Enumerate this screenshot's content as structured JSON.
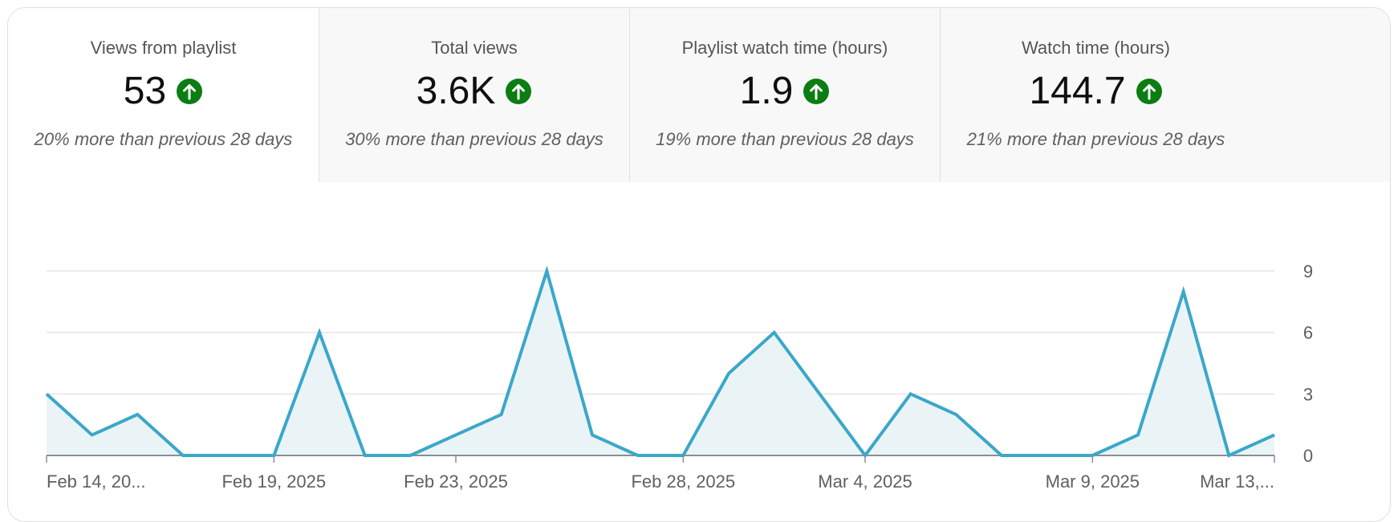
{
  "colors": {
    "accent": "#3ba7c9",
    "area_fill": "#eaf4f7",
    "up_badge": "#0b7d12",
    "grid": "#e5e5e5",
    "baseline": "#8a8f94"
  },
  "metrics": [
    {
      "title": "Views from playlist",
      "value": "53",
      "trend_icon": "arrow-up-icon",
      "comparison": "20% more than previous 28 days",
      "selected": true
    },
    {
      "title": "Total views",
      "value": "3.6K",
      "trend_icon": "arrow-up-icon",
      "comparison": "30% more than previous 28 days",
      "selected": false
    },
    {
      "title": "Playlist watch time (hours)",
      "value": "1.9",
      "trend_icon": "arrow-up-icon",
      "comparison": "19% more than previous 28 days",
      "selected": false
    },
    {
      "title": "Watch time (hours)",
      "value": "144.7",
      "trend_icon": "arrow-up-icon",
      "comparison": "21% more than previous 28 days",
      "selected": false
    }
  ],
  "chart_data": {
    "type": "area",
    "title": "",
    "xlabel": "",
    "ylabel": "",
    "y_axis_side": "right",
    "ylim": [
      0,
      9
    ],
    "y_ticks": [
      0,
      3,
      6,
      9
    ],
    "grid": true,
    "legend": "none",
    "x_tick_labels": [
      {
        "date": "2025-02-14",
        "label": "Feb 14, 20..."
      },
      {
        "date": "2025-02-19",
        "label": "Feb 19, 2025"
      },
      {
        "date": "2025-02-23",
        "label": "Feb 23, 2025"
      },
      {
        "date": "2025-02-28",
        "label": "Feb 28, 2025"
      },
      {
        "date": "2025-03-04",
        "label": "Mar 4, 2025"
      },
      {
        "date": "2025-03-09",
        "label": "Mar 9, 2025"
      },
      {
        "date": "2025-03-13",
        "label": "Mar 13,..."
      }
    ],
    "x": [
      "2025-02-14",
      "2025-02-15",
      "2025-02-16",
      "2025-02-17",
      "2025-02-18",
      "2025-02-19",
      "2025-02-20",
      "2025-02-21",
      "2025-02-22",
      "2025-02-23",
      "2025-02-24",
      "2025-02-25",
      "2025-02-26",
      "2025-02-27",
      "2025-02-28",
      "2025-03-01",
      "2025-03-02",
      "2025-03-03",
      "2025-03-04",
      "2025-03-05",
      "2025-03-06",
      "2025-03-07",
      "2025-03-08",
      "2025-03-09",
      "2025-03-10",
      "2025-03-11",
      "2025-03-12",
      "2025-03-13"
    ],
    "values": [
      3,
      1,
      2,
      0,
      0,
      0,
      6,
      0,
      0,
      1,
      2,
      9,
      1,
      0,
      0,
      4,
      6,
      3,
      0,
      3,
      2,
      0,
      0,
      0,
      1,
      8,
      0,
      1
    ]
  }
}
